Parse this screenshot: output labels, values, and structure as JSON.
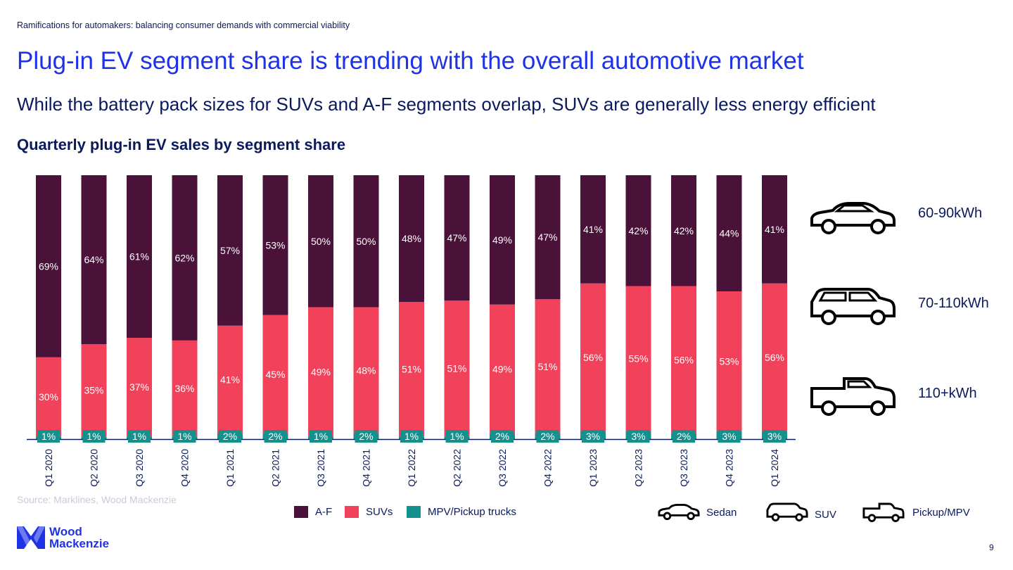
{
  "header": {
    "kicker": "Ramifications for automakers: balancing consumer demands with commercial viability",
    "title": "Plug-in EV segment share is trending with the overall automotive market",
    "subtitle": "While the battery pack sizes for SUVs and A-F segments overlap, SUVs are generally less energy efficient"
  },
  "chart_data": {
    "type": "bar",
    "stacked": true,
    "title": "Quarterly plug-in EV sales by segment share",
    "categories": [
      "Q1 2020",
      "Q2 2020",
      "Q3 2020",
      "Q4 2020",
      "Q1 2021",
      "Q2 2021",
      "Q3 2021",
      "Q4 2021",
      "Q1 2022",
      "Q2 2022",
      "Q3 2022",
      "Q4 2022",
      "Q1 2023",
      "Q2 2023",
      "Q3 2023",
      "Q4 2023",
      "Q1 2024"
    ],
    "series": [
      {
        "name": "MPV/Pickup trucks",
        "color": "#14918c",
        "values": [
          1,
          1,
          1,
          1,
          2,
          2,
          1,
          2,
          1,
          1,
          2,
          2,
          3,
          3,
          2,
          3,
          3
        ],
        "labels": [
          "1%",
          "1%",
          "1%",
          "1%",
          "2%",
          "2%",
          "1%",
          "2%",
          "1%",
          "1%",
          "2%",
          "2%",
          "3%",
          "3%",
          "2%",
          "3%",
          "3%"
        ]
      },
      {
        "name": "SUVs",
        "color": "#f2415a",
        "values": [
          30,
          35,
          37,
          36,
          41,
          45,
          49,
          48,
          51,
          51,
          49,
          51,
          56,
          55,
          56,
          53,
          56
        ],
        "labels": [
          "30%",
          "35%",
          "37%",
          "36%",
          "41%",
          "45%",
          "49%",
          "48%",
          "51%",
          "51%",
          "49%",
          "51%",
          "56%",
          "55%",
          "56%",
          "53%",
          "56%"
        ]
      },
      {
        "name": "A-F",
        "color": "#4a1239",
        "values": [
          69,
          64,
          61,
          62,
          57,
          53,
          50,
          50,
          48,
          47,
          49,
          47,
          41,
          42,
          42,
          44,
          41
        ],
        "labels": [
          "69%",
          "64%",
          "61%",
          "62%",
          "57%",
          "53%",
          "50%",
          "50%",
          "48%",
          "47%",
          "49%",
          "47%",
          "41%",
          "42%",
          "42%",
          "44%",
          "41%"
        ]
      }
    ],
    "ylim": [
      0,
      100
    ],
    "grid": false,
    "legend_placement": "bottom"
  },
  "legend": {
    "items": [
      {
        "label": "A-F",
        "color": "#4a1239"
      },
      {
        "label": "SUVs",
        "color": "#f2415a"
      },
      {
        "label": "MPV/Pickup trucks",
        "color": "#14918c"
      }
    ]
  },
  "vehicles": [
    {
      "icon": "sedan-icon",
      "capacity": "60-90kWh",
      "legend_label": "Sedan"
    },
    {
      "icon": "suv-icon",
      "capacity": "70-110kWh",
      "legend_label": "SUV"
    },
    {
      "icon": "pickup-truck-icon",
      "capacity": "110+kWh",
      "legend_label": "Pickup/MPV"
    }
  ],
  "source": "Source: Marklines, Wood Mackenzie",
  "logo": {
    "line1": "Wood",
    "line2": "Mackenzie"
  },
  "page_number": "9"
}
